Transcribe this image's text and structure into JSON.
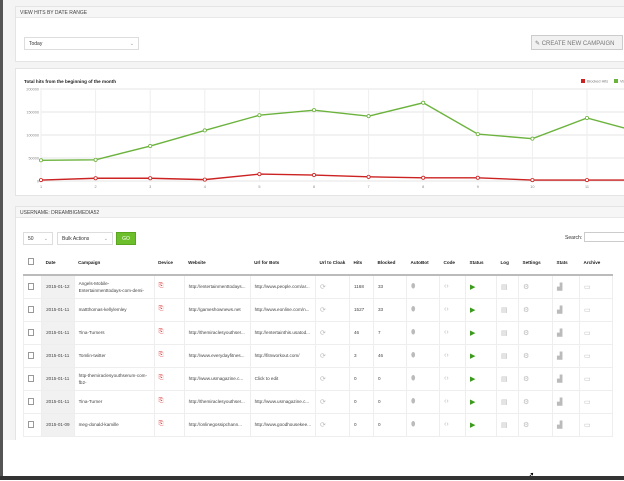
{
  "date_range": {
    "title": "VIEW HITS BY DATE RANGE",
    "selected": "Today",
    "create_button": "CREATE NEW CAMPAIGN"
  },
  "chart_data": {
    "type": "line",
    "title": "Total hits from the beginning of the month",
    "x": [
      1,
      2,
      3,
      4,
      5,
      6,
      7,
      8,
      9,
      10,
      11,
      12
    ],
    "ylim": [
      0,
      200000
    ],
    "yticks": [
      "0",
      "50000",
      "100000",
      "150000",
      "200000"
    ],
    "grid": true,
    "legend": "top-right",
    "series": [
      {
        "name": "Blocked Hits",
        "color": "#cc2222",
        "values": [
          2000,
          6000,
          6000,
          3000,
          15000,
          13000,
          9000,
          7000,
          7000,
          2000,
          2000,
          2000
        ]
      },
      {
        "name": "Visits",
        "color": "#6cb33e",
        "values": [
          45000,
          46000,
          76000,
          110000,
          143000,
          154000,
          141000,
          170000,
          102000,
          92000,
          137000,
          105000
        ]
      }
    ]
  },
  "campaigns": {
    "title": "USERNAME: DREAMBIGMEDIA52",
    "per_page": "50",
    "bulk_actions": "Bulk Actions",
    "go": "GO",
    "search_label": "Search:",
    "search_value": "",
    "columns": [
      "Date",
      "Campaign",
      "Device",
      "Website",
      "Url for Bots",
      "Url to Cloak",
      "Hits",
      "Blocked",
      "AutoBot",
      "Code",
      "Status",
      "Log",
      "Settings",
      "Stats",
      "Archive"
    ],
    "rows": [
      {
        "date": "2015-01-12",
        "campaign": "Angels-Mobile-Entertainmenttodays-com-demi-",
        "website": "http://entertainmenttodays...",
        "bots": "http://www.people.com/ar...",
        "hits": "1168",
        "blocked": "33"
      },
      {
        "date": "2015-01-11",
        "campaign": "mattthomas-kellylemley",
        "website": "http://gameshownews.net",
        "bots": "http://www.eonline.com/n...",
        "hits": "1527",
        "blocked": "33"
      },
      {
        "date": "2015-01-11",
        "campaign": "Tina-Turners",
        "website": "http://themiraclesyouthser...",
        "bots": "http://entertainthis.usatod...",
        "hits": "46",
        "blocked": "7"
      },
      {
        "date": "2015-01-11",
        "campaign": "Tomlin-twitter",
        "website": "http://www.everydayfitnes...",
        "bots": "http://fitnworkout.com/",
        "hits": "3",
        "blocked": "46"
      },
      {
        "date": "2015-01-11",
        "campaign": "http-themiraclesyouthserum-com-fb2-",
        "website": "http://www.usmagazine.c...",
        "bots": "Click to edit",
        "hits": "0",
        "blocked": "0"
      },
      {
        "date": "2015-01-11",
        "campaign": "Tina-Turner",
        "website": "http://themiraclesyouthser...",
        "bots": "http://www.usmagazine.c...",
        "hits": "0",
        "blocked": "0"
      },
      {
        "date": "2015-01-09",
        "campaign": "meg-donald-kamille",
        "website": "http://onlinegossipchann...",
        "bots": "http://www.goodhousekee...",
        "hits": "0",
        "blocked": "0"
      }
    ]
  }
}
